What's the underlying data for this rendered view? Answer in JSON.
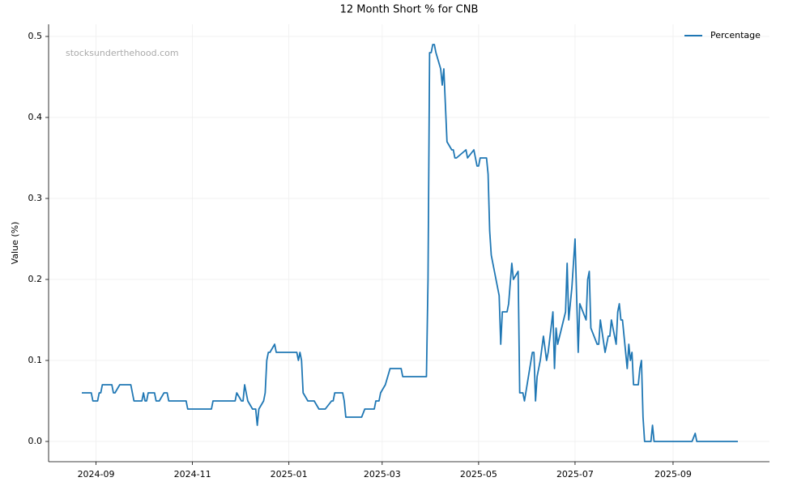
{
  "chart_data": {
    "type": "line",
    "title": "12 Month Short % for CNB",
    "y_label": "Value (%)",
    "annotation": "stocksunderthehood.com",
    "grid": true,
    "legend": "upper right",
    "x": [
      19958,
      19964,
      19965,
      19968,
      19969,
      19970,
      19971,
      19977,
      19978,
      19979,
      19982,
      19989,
      19991,
      19996,
      19997,
      19998,
      19999,
      20000,
      20004,
      20005,
      20007,
      20010,
      20012,
      20013,
      20024,
      20025,
      20040,
      20041,
      20055,
      20056,
      20059,
      20060,
      20061,
      20063,
      20066,
      20068,
      20069,
      20070,
      20073,
      20074,
      20075,
      20076,
      20077,
      20080,
      20081,
      20094,
      20095,
      20096,
      20097,
      20098,
      20101,
      20105,
      20108,
      20112,
      20116,
      20117,
      20118,
      20123,
      20124,
      20125,
      20135,
      20137,
      20143,
      20144,
      20146,
      20147,
      20150,
      20153,
      20160,
      20161,
      20176,
      20177,
      20178,
      20179,
      20180,
      20181,
      20182,
      20185,
      20186,
      20187,
      20189,
      20192,
      20193,
      20194,
      20195,
      20201,
      20202,
      20206,
      20208,
      20209,
      20210,
      20214,
      20215,
      20216,
      20217,
      20222,
      20223,
      20224,
      20227,
      20228,
      20230,
      20231,
      20234,
      20235,
      20237,
      20238,
      20243,
      20244,
      20245,
      20246,
      20248,
      20250,
      20252,
      20253,
      20256,
      20257,
      20258,
      20259,
      20264,
      20265,
      20266,
      20268,
      20270,
      20272,
      20273,
      20277,
      20278,
      20279,
      20280,
      20284,
      20285,
      20286,
      20289,
      20291,
      20292,
      20293,
      20296,
      20297,
      20298,
      20299,
      20300,
      20302,
      20303,
      20304,
      20305,
      20306,
      20307,
      20310,
      20311,
      20312,
      20313,
      20314,
      20318,
      20319,
      20320,
      20344,
      20346,
      20347,
      20373
    ],
    "series": [
      {
        "name": "Percentage",
        "color": "#1f77b4",
        "values": [
          0.06,
          0.06,
          0.05,
          0.05,
          0.06,
          0.06,
          0.07,
          0.07,
          0.06,
          0.06,
          0.07,
          0.07,
          0.05,
          0.05,
          0.06,
          0.05,
          0.05,
          0.06,
          0.06,
          0.05,
          0.05,
          0.06,
          0.06,
          0.05,
          0.05,
          0.04,
          0.04,
          0.05,
          0.05,
          0.06,
          0.05,
          0.05,
          0.07,
          0.05,
          0.04,
          0.04,
          0.02,
          0.04,
          0.05,
          0.06,
          0.1,
          0.11,
          0.11,
          0.12,
          0.11,
          0.11,
          0.1,
          0.11,
          0.1,
          0.06,
          0.05,
          0.05,
          0.04,
          0.04,
          0.05,
          0.05,
          0.06,
          0.06,
          0.05,
          0.03,
          0.03,
          0.04,
          0.04,
          0.05,
          0.05,
          0.06,
          0.07,
          0.09,
          0.09,
          0.08,
          0.08,
          0.2,
          0.48,
          0.48,
          0.49,
          0.49,
          0.48,
          0.46,
          0.44,
          0.46,
          0.37,
          0.36,
          0.36,
          0.35,
          0.35,
          0.36,
          0.35,
          0.36,
          0.34,
          0.34,
          0.35,
          0.35,
          0.33,
          0.26,
          0.23,
          0.18,
          0.12,
          0.16,
          0.16,
          0.17,
          0.22,
          0.2,
          0.21,
          0.06,
          0.06,
          0.05,
          0.11,
          0.11,
          0.05,
          0.08,
          0.1,
          0.13,
          0.1,
          0.11,
          0.16,
          0.09,
          0.14,
          0.12,
          0.16,
          0.22,
          0.15,
          0.19,
          0.25,
          0.11,
          0.17,
          0.15,
          0.2,
          0.21,
          0.14,
          0.12,
          0.12,
          0.15,
          0.11,
          0.13,
          0.13,
          0.15,
          0.12,
          0.16,
          0.17,
          0.15,
          0.15,
          0.11,
          0.09,
          0.12,
          0.1,
          0.11,
          0.07,
          0.07,
          0.09,
          0.1,
          0.03,
          0,
          0,
          0.02,
          0,
          0,
          0.01,
          0,
          0
        ]
      }
    ],
    "xlim": [
      19937,
      20393
    ],
    "xticks": [
      {
        "value": 19967,
        "label": "2024-09"
      },
      {
        "value": 20028,
        "label": "2024-11"
      },
      {
        "value": 20089,
        "label": "2025-01"
      },
      {
        "value": 20148,
        "label": "2025-03"
      },
      {
        "value": 20209,
        "label": "2025-05"
      },
      {
        "value": 20270,
        "label": "2025-07"
      },
      {
        "value": 20332,
        "label": "2025-09"
      }
    ],
    "ylim": [
      -0.025,
      0.515
    ],
    "yticks": [
      {
        "value": 0,
        "label": "0.0"
      },
      0.1,
      0.2,
      0.3,
      0.4,
      0.5
    ]
  }
}
